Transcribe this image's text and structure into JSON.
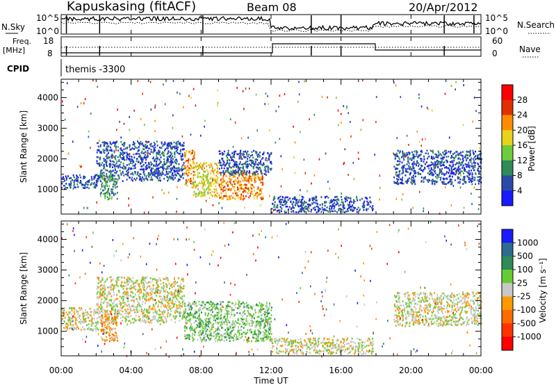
{
  "header": {
    "radar": "Kapuskasing (fitACF)",
    "beam": "Beam 08",
    "date": "20/Apr/2012"
  },
  "strips": {
    "nsky_label": "N.Sky",
    "nsky_ticks": [
      "10^5",
      "10^0"
    ],
    "nsearch_label": "N.Search",
    "nsearch_ticks": [
      "10^5",
      "10^0"
    ],
    "freq_label_line1": "Freq.",
    "freq_label_line2": "[MHz]",
    "freq_ticks": [
      "18",
      "8"
    ],
    "nave_label": "Nave",
    "nave_ticks": [
      "60",
      "0"
    ],
    "cpid_label": "CPID",
    "cpid_value": "themis -3300"
  },
  "chart_data": [
    {
      "type": "heatmap",
      "panel": "power",
      "ylabel": "Slant Range [km]",
      "yticks": [
        1000,
        2000,
        3000,
        4000
      ],
      "ylim": [
        200,
        4600
      ],
      "colorbar_label": "Power [dB]",
      "colorbar_ticks": [
        "4",
        "8",
        "12",
        "16",
        "20",
        "24",
        "28"
      ],
      "colors": [
        "#1a1aff",
        "#2b4aa8",
        "#2e8b57",
        "#6ccc3a",
        "#e8d21c",
        "#ff8c00",
        "#e03000",
        "#ff0000"
      ],
      "regions": [
        {
          "t0": 0.0,
          "t1": 2.1,
          "r0": 1050,
          "r1": 1500,
          "level": 1
        },
        {
          "t0": 2.0,
          "t1": 7.0,
          "r0": 1300,
          "r1": 2600,
          "level": 1
        },
        {
          "t0": 2.2,
          "t1": 3.2,
          "r0": 700,
          "r1": 1500,
          "level": 2
        },
        {
          "t0": 7.0,
          "t1": 7.6,
          "r0": 1100,
          "r1": 2300,
          "level": 5
        },
        {
          "t0": 7.5,
          "t1": 9.0,
          "r0": 800,
          "r1": 1900,
          "level": 4
        },
        {
          "t0": 9.0,
          "t1": 11.5,
          "r0": 700,
          "r1": 1600,
          "level": 5
        },
        {
          "t0": 9.0,
          "t1": 12.0,
          "r0": 1500,
          "r1": 2300,
          "level": 1
        },
        {
          "t0": 12.0,
          "t1": 17.8,
          "r0": 280,
          "r1": 800,
          "level": 1
        },
        {
          "t0": 19.0,
          "t1": 24.0,
          "r0": 1200,
          "r1": 2300,
          "level": 1
        }
      ]
    },
    {
      "type": "heatmap",
      "panel": "velocity",
      "ylabel": "Slant Range [km]",
      "xlabel": "Time UT",
      "xticks": [
        "00:00",
        "04:00",
        "08:00",
        "12:00",
        "16:00",
        "20:00",
        "00:00"
      ],
      "yticks": [
        1000,
        2000,
        3000,
        4000
      ],
      "ylim": [
        200,
        4600
      ],
      "colorbar_label": "Velocity [m s⁻¹]",
      "colorbar_ticks": [
        "1000",
        "500",
        "100",
        "25",
        "-25",
        "-100",
        "-500",
        "-1000"
      ],
      "colors": [
        "#1a1aff",
        "#2e6b8f",
        "#2e8b57",
        "#66cc33",
        "#c8c8c8",
        "#ff9900",
        "#ff6a00",
        "#ff3300",
        "#ff0000"
      ],
      "regions": [
        {
          "t0": 0.0,
          "t1": 2.1,
          "r0": 1050,
          "r1": 1800,
          "level": 4
        },
        {
          "t0": 2.0,
          "t1": 7.0,
          "r0": 1300,
          "r1": 2800,
          "level": 4
        },
        {
          "t0": 2.2,
          "t1": 3.2,
          "r0": 700,
          "r1": 1700,
          "level": 5
        },
        {
          "t0": 7.0,
          "t1": 12.0,
          "r0": 700,
          "r1": 2000,
          "level": 3
        },
        {
          "t0": 12.0,
          "t1": 17.8,
          "r0": 280,
          "r1": 800,
          "level": 4
        },
        {
          "t0": 19.0,
          "t1": 24.0,
          "r0": 1200,
          "r1": 2300,
          "level": 4
        }
      ]
    }
  ]
}
